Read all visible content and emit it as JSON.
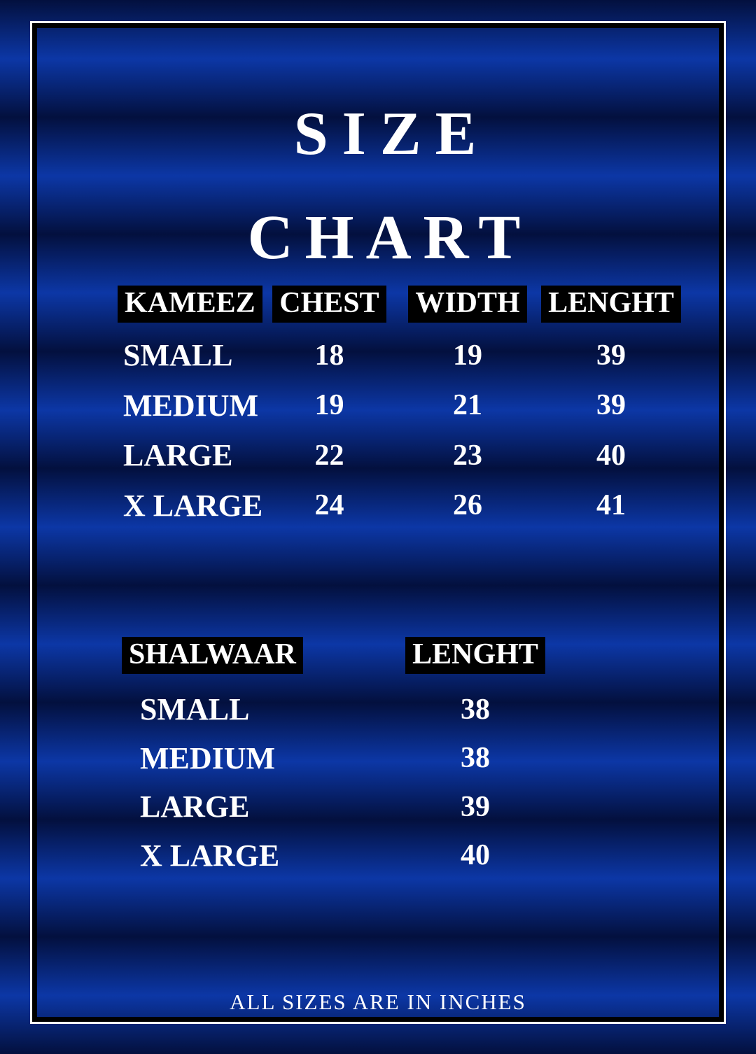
{
  "title": {
    "line1": "SIZE",
    "line2": "CHART"
  },
  "kameez_table": {
    "headers": [
      "KAMEEZ",
      "CHEST",
      "WIDTH",
      "LENGHT"
    ],
    "rows": [
      {
        "size": "SMALL",
        "chest": "18",
        "width": "19",
        "length": "39"
      },
      {
        "size": "MEDIUM",
        "chest": "19",
        "width": "21",
        "length": "39"
      },
      {
        "size": "LARGE",
        "chest": "22",
        "width": "23",
        "length": "40"
      },
      {
        "size": "X LARGE",
        "chest": "24",
        "width": "26",
        "length": "41"
      }
    ]
  },
  "shalwaar_table": {
    "headers": [
      "SHALWAAR",
      "LENGHT"
    ],
    "rows": [
      {
        "size": "SMALL",
        "length": "38"
      },
      {
        "size": "MEDIUM",
        "length": "38"
      },
      {
        "size": "LARGE",
        "length": "39"
      },
      {
        "size": "X LARGE",
        "length": "40"
      }
    ]
  },
  "footer": {
    "note": "ALL SIZES ARE IN INCHES"
  },
  "colors": {
    "stripe_dark": "#03103E",
    "stripe_bright": "#0C37A6",
    "header_bg": "#000000",
    "frame_white": "#FFFFFF",
    "frame_black": "#000000",
    "text": "#FFFFFF"
  },
  "units": "inches"
}
